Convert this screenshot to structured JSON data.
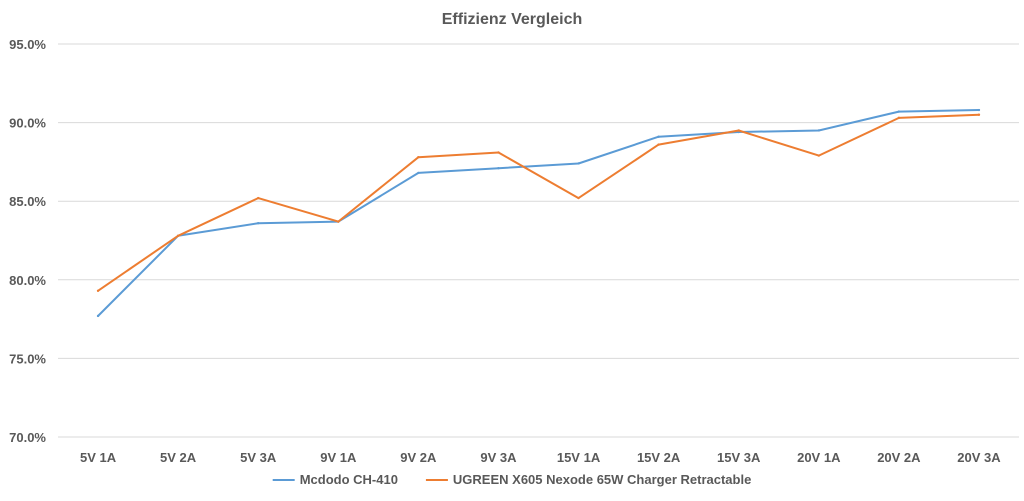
{
  "chart_data": {
    "type": "line",
    "title": "Effizienz Vergleich",
    "categories": [
      "5V 1A",
      "5V 2A",
      "5V 3A",
      "9V 1A",
      "9V 2A",
      "9V 3A",
      "15V 1A",
      "15V 2A",
      "15V 3A",
      "20V 1A",
      "20V 2A",
      "20V 3A"
    ],
    "y_ticks": [
      "70.0%",
      "75.0%",
      "80.0%",
      "85.0%",
      "90.0%",
      "95.0%"
    ],
    "ylim": [
      70,
      95
    ],
    "grid": true,
    "legend_position": "bottom",
    "series": [
      {
        "name": "Mcdodo CH-410",
        "color": "#5b9bd5",
        "values": [
          77.7,
          82.8,
          83.6,
          83.7,
          86.8,
          87.1,
          87.4,
          89.1,
          89.4,
          89.5,
          90.7,
          90.8
        ]
      },
      {
        "name": "UGREEN X605 Nexode 65W Charger Retractable",
        "color": "#ed7d31",
        "values": [
          79.3,
          82.8,
          85.2,
          83.7,
          87.8,
          88.1,
          85.2,
          88.6,
          89.5,
          87.9,
          90.3,
          90.5
        ]
      }
    ]
  }
}
